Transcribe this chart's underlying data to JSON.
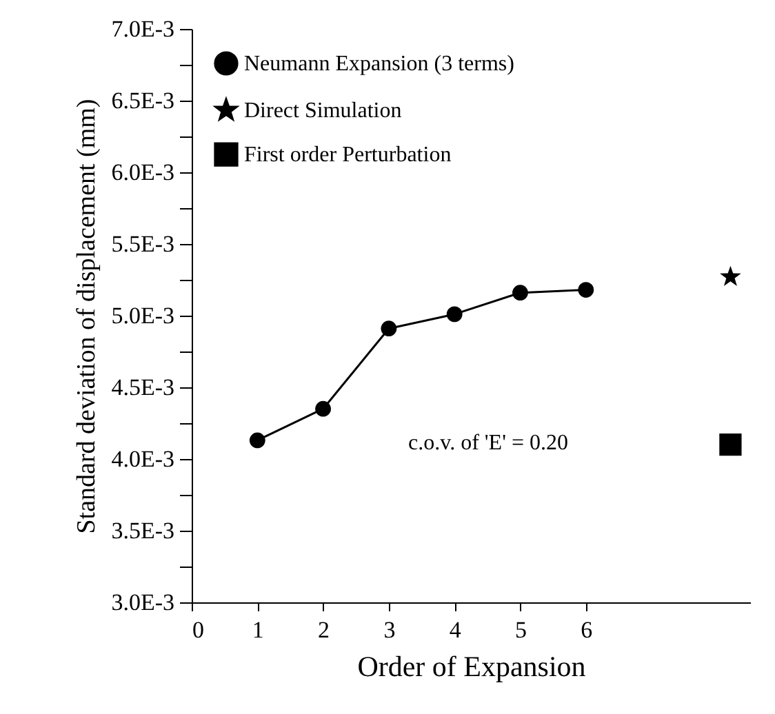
{
  "chart_data": {
    "type": "line",
    "xlabel": "Order of Expansion",
    "ylabel": "Standard deviation of displacement (mm)",
    "x": [
      1,
      2,
      3,
      4,
      5,
      6
    ],
    "series": [
      {
        "name": "Neumann Expansion (3 terms)",
        "type": "line",
        "marker": "circle",
        "color": "#000000",
        "values": [
          0.00413,
          0.00435,
          0.00491,
          0.00501,
          0.00516,
          0.00518
        ]
      },
      {
        "name": "Direct Simulation",
        "type": "scatter",
        "marker": "star",
        "color": "#000000",
        "x": [
          8.2
        ],
        "values": [
          0.00527
        ]
      },
      {
        "name": "First order Perturbation",
        "type": "scatter",
        "marker": "square",
        "color": "#000000",
        "x": [
          8.2
        ],
        "values": [
          0.0041
        ]
      }
    ],
    "xlim": [
      0,
      8.5
    ],
    "xticks": [
      0,
      1,
      2,
      3,
      4,
      5,
      6
    ],
    "ylim": [
      0.003,
      0.007
    ],
    "yticks": [
      {
        "value": 0.003,
        "label": "3.0E-3"
      },
      {
        "value": 0.00325,
        "label": null
      },
      {
        "value": 0.0035,
        "label": "3.5E-3"
      },
      {
        "value": 0.00375,
        "label": null
      },
      {
        "value": 0.004,
        "label": "4.0E-3"
      },
      {
        "value": 0.00425,
        "label": null
      },
      {
        "value": 0.0045,
        "label": "4.5E-3"
      },
      {
        "value": 0.00475,
        "label": null
      },
      {
        "value": 0.005,
        "label": "5.0E-3"
      },
      {
        "value": 0.00525,
        "label": null
      },
      {
        "value": 0.0055,
        "label": "5.5E-3"
      },
      {
        "value": 0.00575,
        "label": null
      },
      {
        "value": 0.006,
        "label": "6.0E-3"
      },
      {
        "value": 0.00625,
        "label": null
      },
      {
        "value": 0.0065,
        "label": "6.5E-3"
      },
      {
        "value": 0.00675,
        "label": null
      },
      {
        "value": 0.007,
        "label": "7.0E-3"
      }
    ],
    "annotations": [
      "c.o.v. of 'E' = 0.20"
    ],
    "legend": "top left",
    "grid": false,
    "line_style": "solid"
  }
}
